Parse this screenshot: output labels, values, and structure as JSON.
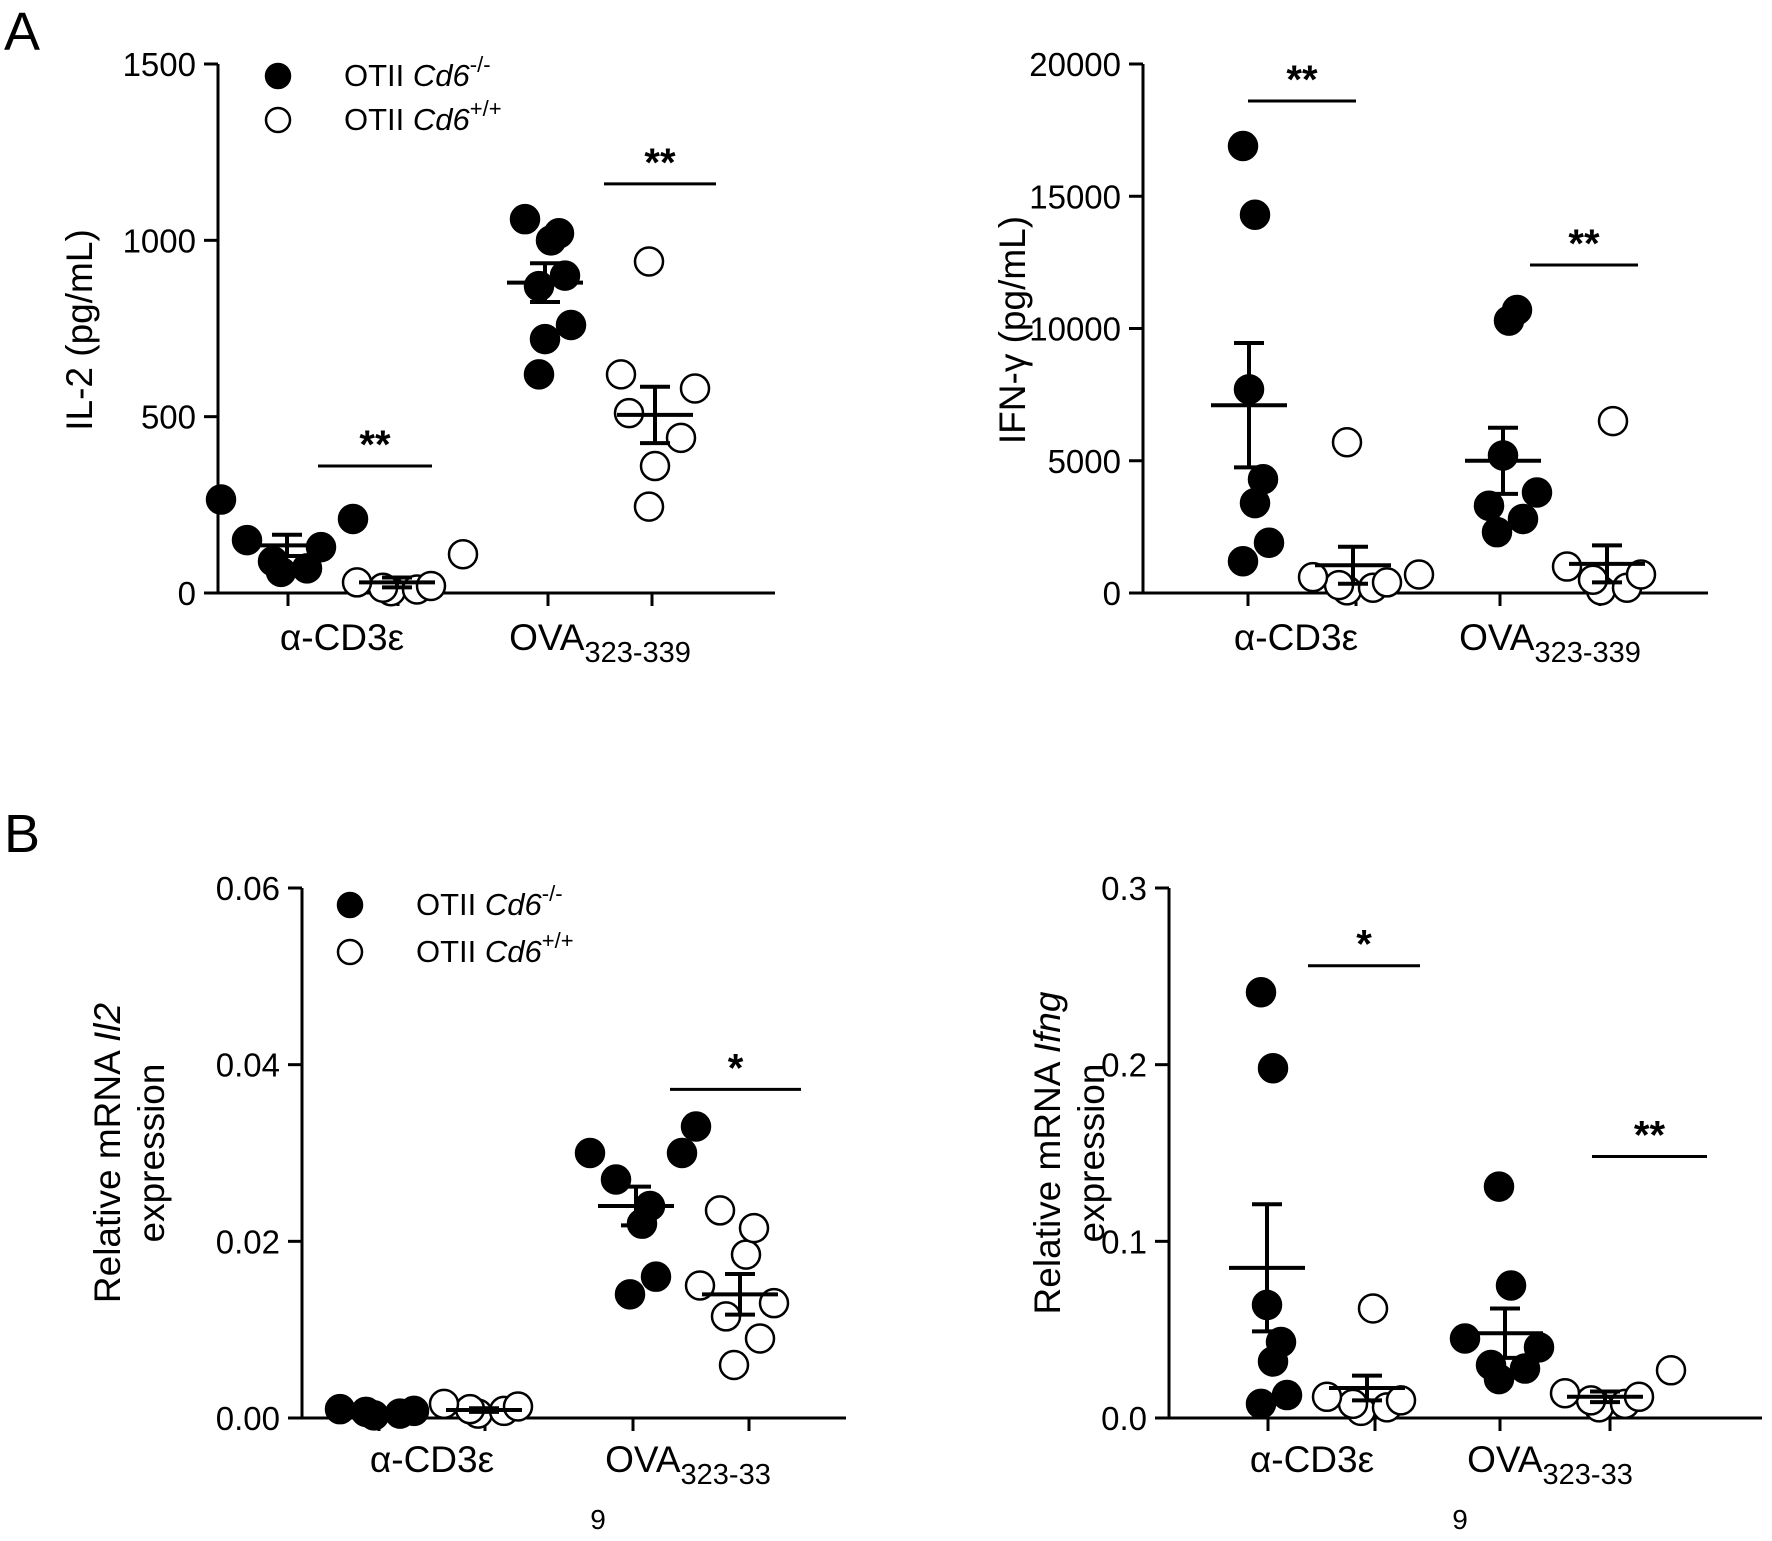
{
  "panel_labels": [
    "A",
    "B"
  ],
  "legend": [
    {
      "prefix": "OTII ",
      "gene": "Cd6",
      "superscript": "-/-",
      "marker": "filled"
    },
    {
      "prefix": "OTII ",
      "gene": "Cd6",
      "superscript": "+/+",
      "marker": "open"
    }
  ],
  "chart_data": [
    {
      "type": "scatter",
      "panel": "A",
      "ylabel": "IL-2 (pg/mL)",
      "ylim": [
        0,
        1500
      ],
      "yticks": [
        "0",
        "500",
        "1000",
        "1500"
      ],
      "categories": [
        {
          "main": "α-CD3ε",
          "sub": ""
        },
        {
          "main": "OVA",
          "sub": "323-339"
        }
      ],
      "series": [
        {
          "name": "OTII Cd6-/-",
          "groups": [
            {
              "points": [
                60,
                70,
                90,
                130,
                150,
                210,
                265
              ],
              "mean": 135,
              "sem": 30
            },
            {
              "points": [
                620,
                720,
                760,
                870,
                900,
                1000,
                1020,
                1060
              ],
              "mean": 880,
              "sem": 55
            }
          ]
        },
        {
          "name": "OTII Cd6+/+",
          "groups": [
            {
              "points": [
                5,
                10,
                15,
                20,
                30,
                110
              ],
              "mean": 30,
              "sem": 14
            },
            {
              "points": [
                245,
                360,
                440,
                510,
                580,
                620,
                940
              ],
              "mean": 505,
              "sem": 80
            }
          ]
        }
      ],
      "significance": [
        {
          "category": 0,
          "label": "**",
          "y": 360
        },
        {
          "category": 1,
          "label": "**",
          "y": 1160
        }
      ]
    },
    {
      "type": "scatter",
      "panel": "A",
      "ylabel": "IFN-γ (pg/mL)",
      "ylim": [
        0,
        20000
      ],
      "yticks": [
        "0",
        "5000",
        "10000",
        "15000",
        "20000"
      ],
      "categories": [
        {
          "main": "α-CD3ε",
          "sub": ""
        },
        {
          "main": "OVA",
          "sub": "323-339"
        }
      ],
      "series": [
        {
          "name": "OTII Cd6-/-",
          "groups": [
            {
              "points": [
                1200,
                1900,
                3400,
                4300,
                7700,
                14300,
                16900
              ],
              "mean": 7100,
              "sem": 2350
            },
            {
              "points": [
                2300,
                2800,
                3300,
                3800,
                5200,
                10300,
                10700
              ],
              "mean": 5000,
              "sem": 1250
            }
          ]
        },
        {
          "name": "OTII Cd6+/+",
          "groups": [
            {
              "points": [
                100,
                200,
                300,
                400,
                600,
                700,
                5700
              ],
              "mean": 1050,
              "sem": 700
            },
            {
              "points": [
                100,
                200,
                500,
                700,
                1000,
                6500
              ],
              "mean": 1100,
              "sem": 700
            }
          ]
        }
      ],
      "significance": [
        {
          "category": 0,
          "label": "**",
          "y": 18600
        },
        {
          "category": 1,
          "label": "**",
          "y": 12400
        }
      ]
    },
    {
      "type": "scatter",
      "panel": "B",
      "ylabel_line1": "Relative mRNA ",
      "ylabel_gene": "Il2",
      "ylabel_line2": "expression",
      "ylim": [
        0,
        0.06
      ],
      "yticks": [
        "0.00",
        "0.02",
        "0.04",
        "0.06"
      ],
      "categories": [
        {
          "main": "α-CD3ε",
          "sub": "",
          "wrap": ""
        },
        {
          "main": "OVA",
          "sub": "323-33",
          "wrap": "9"
        }
      ],
      "series": [
        {
          "name": "OTII Cd6-/-",
          "groups": [
            {
              "points": [
                0.0003,
                0.0005,
                0.0007,
                0.0008,
                0.001
              ],
              "mean": 0.0007,
              "sem": 0.0002
            },
            {
              "points": [
                0.014,
                0.016,
                0.022,
                0.024,
                0.027,
                0.03,
                0.03,
                0.033
              ],
              "mean": 0.024,
              "sem": 0.0022
            }
          ]
        },
        {
          "name": "OTII Cd6+/+",
          "groups": [
            {
              "points": [
                0.0005,
                0.0008,
                0.001,
                0.0013,
                0.0016
              ],
              "mean": 0.0009,
              "sem": 0.0002
            },
            {
              "points": [
                0.006,
                0.009,
                0.0115,
                0.013,
                0.015,
                0.0185,
                0.0215,
                0.0235
              ],
              "mean": 0.014,
              "sem": 0.0023
            }
          ]
        }
      ],
      "significance": [
        {
          "category": 1,
          "label": "*",
          "y": 0.0372
        }
      ]
    },
    {
      "type": "scatter",
      "panel": "B",
      "ylabel_line1": "Relative mRNA ",
      "ylabel_gene": "Ifng",
      "ylabel_line2": "expression",
      "ylim": [
        0,
        0.3
      ],
      "yticks": [
        "0.0",
        "0.1",
        "0.2",
        "0.3"
      ],
      "categories": [
        {
          "main": "α-CD3ε",
          "sub": "",
          "wrap": ""
        },
        {
          "main": "OVA",
          "sub": "323-33",
          "wrap": "9"
        }
      ],
      "series": [
        {
          "name": "OTII Cd6-/-",
          "groups": [
            {
              "points": [
                0.008,
                0.013,
                0.032,
                0.043,
                0.064,
                0.198,
                0.241
              ],
              "mean": 0.085,
              "sem": 0.036
            },
            {
              "points": [
                0.022,
                0.028,
                0.03,
                0.04,
                0.045,
                0.075,
                0.131
              ],
              "mean": 0.048,
              "sem": 0.014
            }
          ]
        },
        {
          "name": "OTII Cd6+/+",
          "groups": [
            {
              "points": [
                0.004,
                0.006,
                0.008,
                0.01,
                0.012,
                0.062
              ],
              "mean": 0.017,
              "sem": 0.007
            },
            {
              "points": [
                0.006,
                0.008,
                0.01,
                0.012,
                0.014,
                0.027
              ],
              "mean": 0.012,
              "sem": 0.003
            }
          ]
        }
      ],
      "significance": [
        {
          "category": 0,
          "label": "*",
          "y": 0.256
        },
        {
          "category": 1,
          "label": "**",
          "y": 0.148
        }
      ]
    }
  ]
}
